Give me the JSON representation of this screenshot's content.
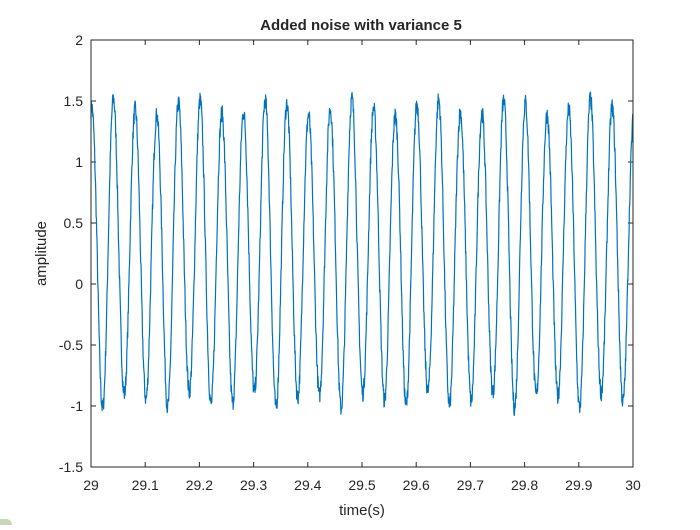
{
  "chart_data": {
    "type": "line",
    "title": "Added noise with variance 5",
    "xlabel": "time(s)",
    "ylabel": "amplitude",
    "xlim": [
      29,
      30
    ],
    "ylim": [
      -1.5,
      2
    ],
    "x_ticks": [
      "29",
      "29.1",
      "29.2",
      "29.3",
      "29.4",
      "29.5",
      "29.6",
      "29.7",
      "29.8",
      "29.9",
      "30"
    ],
    "y_ticks": [
      "-1.5",
      "-1",
      "-0.5",
      "0",
      "0.5",
      "1",
      "1.5",
      "2"
    ],
    "grid": false,
    "box": true,
    "series": [
      {
        "color": "#0072BD",
        "signal": {
          "cycles_in_window": 25,
          "offset": 0.25,
          "amplitude": 1.2,
          "peak_max": 1.62,
          "trough_min": -1.1,
          "x_start": 29,
          "x_end": 30
        }
      }
    ]
  }
}
